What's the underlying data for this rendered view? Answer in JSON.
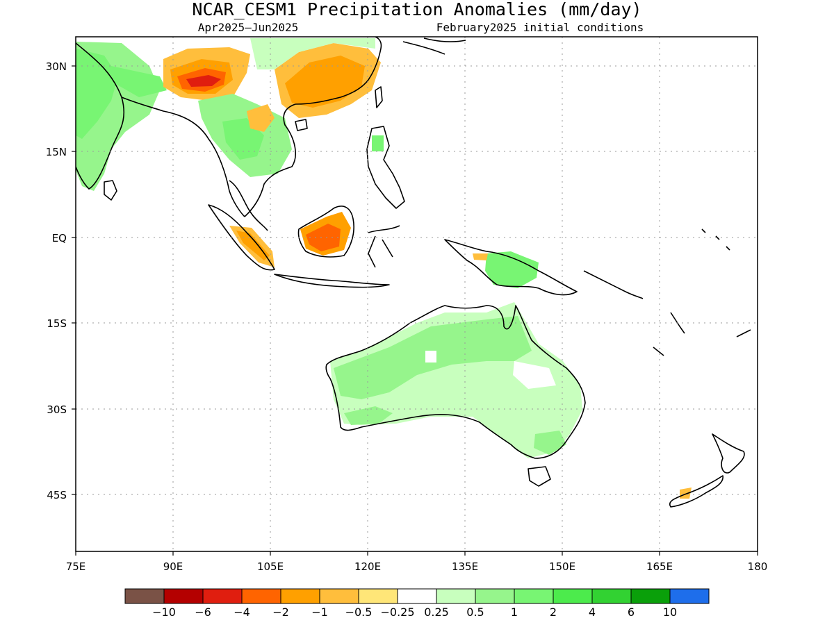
{
  "title": "NCAR_CESM1 Precipitation Anomalies (mm/day)",
  "subtitle_left": "Apr2025–Jun2025",
  "subtitle_right": "February2025 initial conditions",
  "map": {
    "lon_range": [
      75,
      180
    ],
    "lat_range": [
      -55,
      35
    ],
    "x_ticks": [
      "75E",
      "90E",
      "105E",
      "120E",
      "135E",
      "150E",
      "165E",
      "180"
    ],
    "x_tick_values": [
      75,
      90,
      105,
      120,
      135,
      150,
      165,
      180
    ],
    "y_ticks": [
      "30N",
      "15N",
      "EQ",
      "15S",
      "30S",
      "45S"
    ],
    "y_tick_values": [
      30,
      15,
      0,
      -15,
      -30,
      -45
    ],
    "grid": "dotted"
  },
  "colorbar": {
    "colors": [
      "#7a5246",
      "#b40000",
      "#e01e0f",
      "#ff6400",
      "#ffa000",
      "#ffbe3c",
      "#ffe678",
      "#ffffff",
      "#c8ffbe",
      "#96f58c",
      "#78f573",
      "#4ceb4c",
      "#32d232",
      "#0aa00a",
      "#1e6eeb"
    ],
    "labels": [
      "−10",
      "−6",
      "−4",
      "−2",
      "−1",
      "−0.5",
      "−0.25",
      "0.25",
      "0.5",
      "1",
      "2",
      "4",
      "6",
      "10"
    ]
  }
}
